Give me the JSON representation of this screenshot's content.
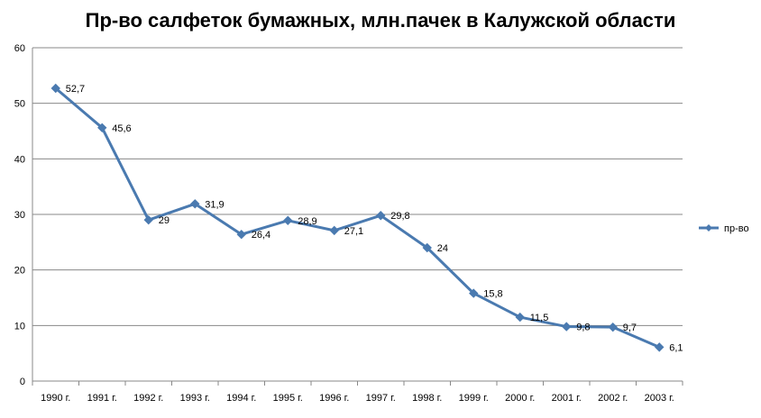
{
  "chart_data": {
    "type": "line",
    "title": "Пр-во салфеток бумажных, млн.пачек в Калужской области",
    "categories": [
      "1990 г.",
      "1991 г.",
      "1992 г.",
      "1993 г.",
      "1994 г.",
      "1995 г.",
      "1996 г.",
      "1997 г.",
      "1998 г.",
      "1999 г.",
      "2000 г.",
      "2001 г.",
      "2002 г.",
      "2003 г."
    ],
    "series": [
      {
        "name": "пр-во",
        "values": [
          52.7,
          45.6,
          29,
          31.9,
          26.4,
          28.9,
          27.1,
          29.8,
          24,
          15.8,
          11.5,
          9.8,
          9.7,
          6.1
        ],
        "labels": [
          "52,7",
          "45,6",
          "29",
          "31,9",
          "26,4",
          "28,9",
          "27,1",
          "29,8",
          "24",
          "15,8",
          "11,5",
          "9,8",
          "9,7",
          "6,1"
        ],
        "color": "#4A7AB0"
      }
    ],
    "ylim": [
      0,
      60
    ],
    "yticks": [
      "0",
      "10",
      "20",
      "30",
      "40",
      "50",
      "60"
    ],
    "grid": true,
    "legend_position": "right",
    "xlabel": "",
    "ylabel": ""
  }
}
